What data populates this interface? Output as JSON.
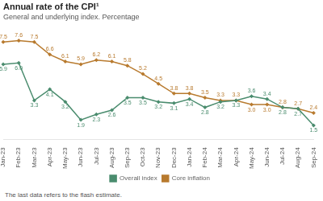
{
  "chart_data": {
    "type": "line",
    "title": "Annual rate of the CPI¹",
    "subtitle": "General and underlying index. Percentage",
    "footnote": "The last data refers to the flash estimate.",
    "categories": [
      "Jan-23",
      "Feb-23",
      "Mar-23",
      "Apr-23",
      "May-23",
      "Jun-23",
      "Jul-23",
      "Aug-23",
      "Sep-23",
      "Oct-23",
      "Nov-23",
      "Dec-23",
      "Jan-24",
      "Feb-24",
      "Mar-24",
      "Apr-24",
      "May-24",
      "Jun-24",
      "Jul-24",
      "Aug-24",
      "Sep-24"
    ],
    "series": [
      {
        "name": "Overall index",
        "color": "#4a8c6e",
        "values": [
          5.9,
          6.0,
          3.3,
          4.1,
          3.2,
          1.9,
          2.3,
          2.6,
          3.5,
          3.5,
          3.2,
          3.1,
          3.4,
          2.8,
          3.2,
          3.3,
          3.6,
          3.4,
          2.8,
          2.7,
          1.5
        ],
        "value_labels": [
          "5.9",
          "6.0",
          "3.3",
          "4.1",
          "3.2",
          "1.9",
          "2.3",
          "2.6",
          "3.5",
          "3.5",
          "3.2",
          "3.1",
          "3.4",
          "2.8",
          "3.2",
          "3.3",
          "3.6",
          "3.4",
          "2.8",
          "2.7",
          "1.5"
        ]
      },
      {
        "name": "Core inflation",
        "color": "#b87a2e",
        "values": [
          7.5,
          7.6,
          7.5,
          6.6,
          6.1,
          5.9,
          6.2,
          6.1,
          5.8,
          5.2,
          4.5,
          3.8,
          3.8,
          3.5,
          3.3,
          3.3,
          3.0,
          3.0,
          2.8,
          2.7,
          2.4
        ],
        "value_labels": [
          "7.5",
          "7.6",
          "7.5",
          "6.6",
          "6.1",
          "5.9",
          "6.2",
          "6.1",
          "5.8",
          "5.2",
          "4.5",
          "3.8",
          "3.8",
          "3.5",
          "3.3",
          "3.3",
          "3.0",
          "3.0",
          "2.8",
          "2.7",
          "2.4"
        ]
      }
    ],
    "ylim": [
      0.5,
      8.5
    ],
    "grid": false,
    "legend": "bottom",
    "data_labels": true,
    "tick_labels": "x",
    "marker": "diamond"
  }
}
